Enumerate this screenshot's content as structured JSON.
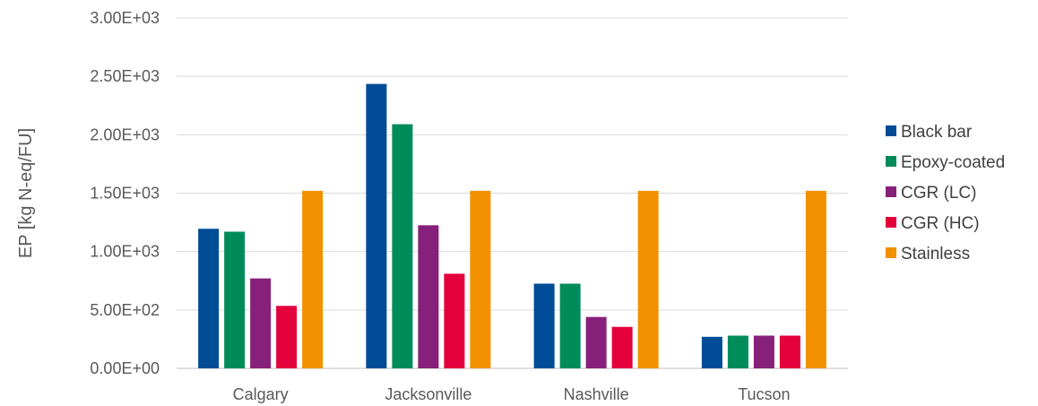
{
  "chart_data": {
    "type": "bar",
    "title": "",
    "xlabel": "",
    "ylabel": "EP [kg N-eq/FU]",
    "ylim": [
      0,
      3000
    ],
    "yticks": [
      0,
      500,
      1000,
      1500,
      2000,
      2500,
      3000
    ],
    "ytick_labels": [
      "0.00E+00",
      "5.00E+02",
      "1.00E+03",
      "1.50E+03",
      "2.00E+03",
      "2.50E+03",
      "3.00E+03"
    ],
    "grid": true,
    "legend_position": "right",
    "categories": [
      "Calgary",
      "Jacksonville",
      "Nashville",
      "Tucson"
    ],
    "series": [
      {
        "name": "Black bar",
        "color": "#004C97",
        "values": [
          1195,
          2435,
          725,
          270
        ]
      },
      {
        "name": "Epoxy-coated",
        "color": "#008C5A",
        "values": [
          1170,
          2090,
          725,
          280
        ]
      },
      {
        "name": "CGR (LC)",
        "color": "#86207A",
        "values": [
          770,
          1225,
          440,
          280
        ]
      },
      {
        "name": "CGR (HC)",
        "color": "#E4003B",
        "values": [
          535,
          810,
          355,
          280
        ]
      },
      {
        "name": "Stainless",
        "color": "#F29100",
        "values": [
          1520,
          1520,
          1520,
          1520
        ]
      }
    ]
  }
}
